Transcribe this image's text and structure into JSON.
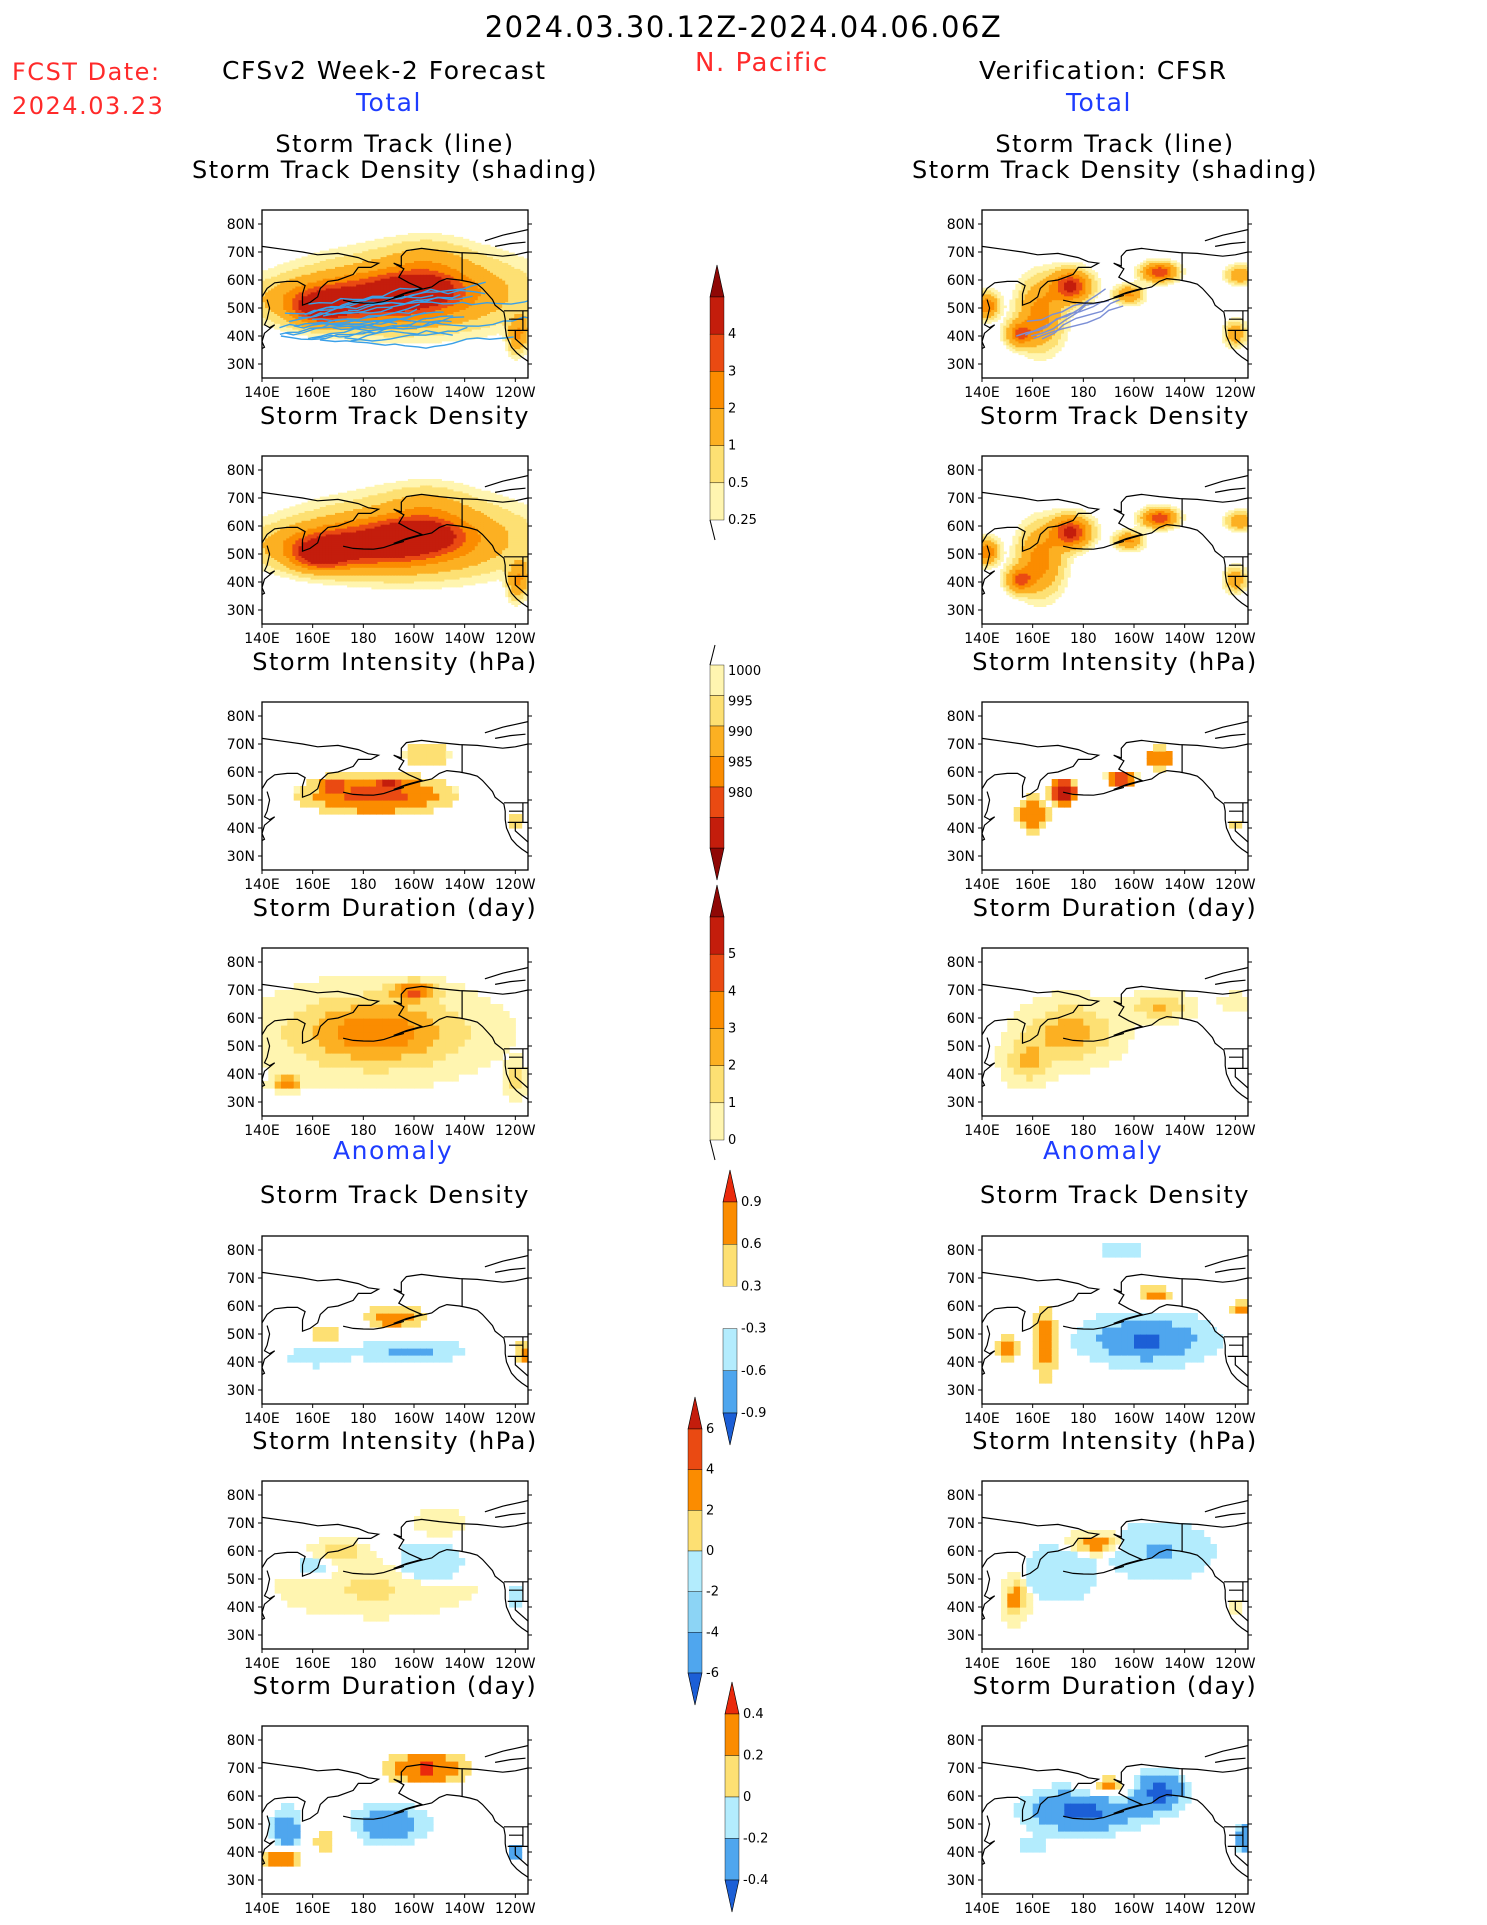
{
  "header": {
    "date_range": "2024.03.30.12Z-2024.04.06.06Z",
    "region": "N. Pacific",
    "fcst_label": "FCST Date:",
    "fcst_date": "2024.03.23",
    "left_title": "CFSv2 Week-2 Forecast",
    "right_title": "Verification: CFSR",
    "total_label": "Total",
    "anomaly_label": "Anomaly"
  },
  "colors": {
    "red_text": "#ff2a2a",
    "blue_text": "#1e3cff",
    "track_line": "#3aa0e8",
    "pos_ramp": [
      "#fff5b0",
      "#fde073",
      "#fcb022",
      "#fb8c00",
      "#ea4a12",
      "#c41d0c",
      "#8f0806"
    ],
    "neg_ramp": [
      "#b3ecfd",
      "#8cd4f5",
      "#4fa6ee",
      "#1c5fd6"
    ]
  },
  "axes": {
    "lat_ticks": [
      "80N",
      "70N",
      "60N",
      "50N",
      "40N",
      "30N"
    ],
    "lon_ticks": [
      "140E",
      "160E",
      "180",
      "160W",
      "140W",
      "120W"
    ]
  },
  "chart_data": [
    {
      "type": "heatmap",
      "panel": "forecast",
      "section": "Total",
      "title": "Storm Track (line)",
      "title2": "Storm Track Density (shading)",
      "units": "",
      "xlim": [
        "140E",
        "115W"
      ],
      "ylim": [
        "25N",
        "85N"
      ],
      "field": "forecast_density",
      "tracks": true
    },
    {
      "type": "heatmap",
      "panel": "verification",
      "section": "Total",
      "title": "Storm Track (line)",
      "title2": "Storm Track Density (shading)",
      "units": "",
      "xlim": [
        "140E",
        "115W"
      ],
      "ylim": [
        "25N",
        "85N"
      ],
      "field": "verif_density",
      "tracks": true
    },
    {
      "type": "heatmap",
      "panel": "forecast",
      "section": "Total",
      "title": "Storm Track Density",
      "units": "",
      "field": "forecast_density"
    },
    {
      "type": "heatmap",
      "panel": "verification",
      "section": "Total",
      "title": "Storm Track Density",
      "units": "",
      "field": "verif_density"
    },
    {
      "type": "heatmap",
      "panel": "forecast",
      "section": "Total",
      "title": "Storm Intensity (hPa)",
      "units": "hPa",
      "field": "forecast_intensity"
    },
    {
      "type": "heatmap",
      "panel": "verification",
      "section": "Total",
      "title": "Storm Intensity (hPa)",
      "units": "hPa",
      "field": "verif_intensity"
    },
    {
      "type": "heatmap",
      "panel": "forecast",
      "section": "Total",
      "title": "Storm Duration (day)",
      "units": "day",
      "field": "forecast_duration"
    },
    {
      "type": "heatmap",
      "panel": "verification",
      "section": "Total",
      "title": "Storm Duration (day)",
      "units": "day",
      "field": "verif_duration"
    },
    {
      "type": "heatmap",
      "panel": "forecast",
      "section": "Anomaly",
      "title": "Storm Track Density",
      "units": "",
      "field": "forecast_density_anom"
    },
    {
      "type": "heatmap",
      "panel": "verification",
      "section": "Anomaly",
      "title": "Storm Track Density",
      "units": "",
      "field": "verif_density_anom"
    },
    {
      "type": "heatmap",
      "panel": "forecast",
      "section": "Anomaly",
      "title": "Storm Intensity (hPa)",
      "units": "hPa",
      "field": "forecast_intensity_anom"
    },
    {
      "type": "heatmap",
      "panel": "verification",
      "section": "Anomaly",
      "title": "Storm Intensity (hPa)",
      "units": "hPa",
      "field": "verif_intensity_anom"
    },
    {
      "type": "heatmap",
      "panel": "forecast",
      "section": "Anomaly",
      "title": "Storm Duration (day)",
      "units": "day",
      "field": "forecast_duration_anom"
    },
    {
      "type": "heatmap",
      "panel": "verification",
      "section": "Anomaly",
      "title": "Storm Duration (day)",
      "units": "day",
      "field": "verif_duration_anom"
    }
  ],
  "colorbars": [
    {
      "name": "density",
      "labels": [
        "0.25",
        "0.5",
        "1",
        "2",
        "3",
        "4"
      ],
      "ramp": [
        "#fff5b0",
        "#fde073",
        "#fcb022",
        "#fb8c00",
        "#ea4a12",
        "#c41d0c",
        "#8f0806"
      ],
      "low_end": "open",
      "high_end": "arrow"
    },
    {
      "name": "intensity",
      "labels": [
        "1000",
        "995",
        "990",
        "985",
        "980"
      ],
      "ramp": [
        "#fff5b0",
        "#fde073",
        "#fcb022",
        "#fb8c00",
        "#ea4a12",
        "#c41d0c",
        "#8f0806"
      ],
      "low_end": "open",
      "high_end": "arrow",
      "reversed": true
    },
    {
      "name": "duration",
      "labels": [
        "0",
        "1",
        "2",
        "3",
        "4",
        "5"
      ],
      "ramp": [
        "#fff5b0",
        "#fde073",
        "#fcb022",
        "#fb8c00",
        "#ea4a12",
        "#c41d0c",
        "#8f0806"
      ],
      "low_end": "open",
      "high_end": "arrow"
    },
    {
      "name": "density_anom",
      "labels": [
        "0.9",
        "0.6",
        "0.3",
        "-0.3",
        "-0.6",
        "-0.9"
      ],
      "ramp": [
        "#1c5fd6",
        "#4fa6ee",
        "#b3ecfd",
        "#ffffff",
        "#fde073",
        "#fb8c00",
        "#ea2a0c"
      ]
    },
    {
      "name": "intensity_anom",
      "labels": [
        "6",
        "4",
        "2",
        "0",
        "-2",
        "-4",
        "-6"
      ],
      "ramp": [
        "#1c5fd6",
        "#4fa6ee",
        "#8cd4f5",
        "#b3ecfd",
        "#fde073",
        "#fb8c00",
        "#ea4a12",
        "#c41d0c"
      ]
    },
    {
      "name": "duration_anom",
      "labels": [
        "0.4",
        "0.2",
        "0",
        "-0.2",
        "-0.4"
      ],
      "ramp": [
        "#1c5fd6",
        "#4fa6ee",
        "#b3ecfd",
        "#fde073",
        "#fb8c00",
        "#ea2a0c"
      ]
    }
  ],
  "fields": {
    "forecast_density": [
      {
        "lon": 200,
        "lat": 56,
        "v": 2.5,
        "rx": 38,
        "ry": 12
      },
      {
        "lon": 178,
        "lat": 53,
        "v": 3.8,
        "rx": 30,
        "ry": 7
      },
      {
        "lon": 163,
        "lat": 50,
        "v": 3.6,
        "rx": 10,
        "ry": 5
      },
      {
        "lon": 202,
        "lat": 57,
        "v": 3.6,
        "rx": 14,
        "ry": 5
      },
      {
        "lon": 205,
        "lat": 66,
        "v": 0.8,
        "rx": 15,
        "ry": 8
      },
      {
        "lon": 240,
        "lat": 40,
        "v": 1.5,
        "rx": 3,
        "ry": 6
      },
      {
        "lon": 243,
        "lat": 42,
        "v": 1.2,
        "rx": 3,
        "ry": 6
      }
    ],
    "verif_density": [
      {
        "lon": 175,
        "lat": 58,
        "v": 4.5,
        "rx": 7,
        "ry": 5
      },
      {
        "lon": 163,
        "lat": 48,
        "v": 2.5,
        "rx": 8,
        "ry": 11
      },
      {
        "lon": 155,
        "lat": 41,
        "v": 3,
        "rx": 5,
        "ry": 4
      },
      {
        "lon": 142,
        "lat": 51,
        "v": 3,
        "rx": 4,
        "ry": 4
      },
      {
        "lon": 210,
        "lat": 63,
        "v": 4,
        "rx": 6,
        "ry": 3
      },
      {
        "lon": 198,
        "lat": 55,
        "v": 2.2,
        "rx": 5,
        "ry": 3
      },
      {
        "lon": 242,
        "lat": 62,
        "v": 2,
        "rx": 5,
        "ry": 3
      },
      {
        "lon": 240,
        "lat": 41,
        "v": 1.8,
        "rx": 4,
        "ry": 4
      }
    ],
    "forecast_intensity": [
      {
        "lon": 185,
        "lat": 52,
        "v": 988,
        "rx": 32,
        "ry": 8
      },
      {
        "lon": 168,
        "lat": 55,
        "v": 984,
        "rx": 6,
        "ry": 4
      },
      {
        "lon": 190,
        "lat": 56,
        "v": 984,
        "rx": 7,
        "ry": 3
      },
      {
        "lon": 205,
        "lat": 66,
        "v": 996,
        "rx": 12,
        "ry": 6
      },
      {
        "lon": 240,
        "lat": 42,
        "v": 998,
        "rx": 3,
        "ry": 6
      }
    ],
    "verif_intensity": [
      {
        "lon": 172,
        "lat": 53,
        "v": 981,
        "rx": 6,
        "ry": 5
      },
      {
        "lon": 195,
        "lat": 58,
        "v": 984,
        "rx": 6,
        "ry": 3
      },
      {
        "lon": 160,
        "lat": 45,
        "v": 990,
        "rx": 7,
        "ry": 7
      },
      {
        "lon": 210,
        "lat": 65,
        "v": 989,
        "rx": 6,
        "ry": 4
      },
      {
        "lon": 240,
        "lat": 41,
        "v": 999,
        "rx": 4,
        "ry": 4
      }
    ],
    "forecast_duration": [
      {
        "lon": 185,
        "lat": 55,
        "v": 3.8,
        "rx": 32,
        "ry": 12
      },
      {
        "lon": 150,
        "lat": 37,
        "v": 4.5,
        "rx": 5,
        "ry": 2
      },
      {
        "lon": 200,
        "lat": 70,
        "v": 4.2,
        "rx": 8,
        "ry": 3
      },
      {
        "lon": 240,
        "lat": 38,
        "v": 2,
        "rx": 3,
        "ry": 5
      }
    ],
    "verif_duration": [
      {
        "lon": 175,
        "lat": 55,
        "v": 2.8,
        "rx": 15,
        "ry": 9
      },
      {
        "lon": 158,
        "lat": 45,
        "v": 2.2,
        "rx": 8,
        "ry": 7
      },
      {
        "lon": 210,
        "lat": 64,
        "v": 2.2,
        "rx": 10,
        "ry": 4
      },
      {
        "lon": 240,
        "lat": 66,
        "v": 0.6,
        "rx": 6,
        "ry": 3
      }
    ],
    "forecast_density_anom": [
      {
        "lon": 190,
        "lat": 56,
        "v": 0.95,
        "rx": 15,
        "ry": 5
      },
      {
        "lon": 165,
        "lat": 50,
        "v": 0.8,
        "rx": 7,
        "ry": 3
      },
      {
        "lon": 200,
        "lat": 44,
        "v": -0.7,
        "rx": 22,
        "ry": 5
      },
      {
        "lon": 160,
        "lat": 42,
        "v": -0.45,
        "rx": 15,
        "ry": 5
      },
      {
        "lon": 172,
        "lat": 56,
        "v": -0.35,
        "rx": 20,
        "ry": 6
      },
      {
        "lon": 243,
        "lat": 43,
        "v": 0.9,
        "rx": 3,
        "ry": 4
      }
    ],
    "verif_density_anom": [
      {
        "lon": 205,
        "lat": 48,
        "v": -0.95,
        "rx": 28,
        "ry": 10
      },
      {
        "lon": 165,
        "lat": 47,
        "v": 0.95,
        "rx": 5,
        "ry": 14
      },
      {
        "lon": 150,
        "lat": 45,
        "v": 0.7,
        "rx": 5,
        "ry": 7
      },
      {
        "lon": 208,
        "lat": 64,
        "v": 0.95,
        "rx": 7,
        "ry": 3
      },
      {
        "lon": 195,
        "lat": 80,
        "v": -0.35,
        "rx": 30,
        "ry": 4
      },
      {
        "lon": 243,
        "lat": 59,
        "v": 0.85,
        "rx": 5,
        "ry": 3
      }
    ],
    "forecast_intensity_anom": [
      {
        "lon": 185,
        "lat": 47,
        "v": 2.5,
        "rx": 30,
        "ry": 8
      },
      {
        "lon": 170,
        "lat": 60,
        "v": 4.5,
        "rx": 8,
        "ry": 3
      },
      {
        "lon": 205,
        "lat": 54,
        "v": -2.5,
        "rx": 12,
        "ry": 7
      },
      {
        "lon": 162,
        "lat": 54,
        "v": -1.5,
        "rx": 10,
        "ry": 5
      },
      {
        "lon": 210,
        "lat": 70,
        "v": 1.5,
        "rx": 10,
        "ry": 4
      },
      {
        "lon": 240,
        "lat": 44,
        "v": -1,
        "rx": 4,
        "ry": 5
      }
    ],
    "verif_intensity_anom": [
      {
        "lon": 185,
        "lat": 63,
        "v": 6.5,
        "rx": 8,
        "ry": 3
      },
      {
        "lon": 153,
        "lat": 43,
        "v": 6,
        "rx": 4,
        "ry": 6
      },
      {
        "lon": 170,
        "lat": 52,
        "v": -3.5,
        "rx": 10,
        "ry": 7
      },
      {
        "lon": 210,
        "lat": 60,
        "v": -4.5,
        "rx": 14,
        "ry": 7
      },
      {
        "lon": 240,
        "lat": 40,
        "v": 1.5,
        "rx": 3,
        "ry": 3
      }
    ],
    "forecast_duration_anom": [
      {
        "lon": 205,
        "lat": 70,
        "v": 0.45,
        "rx": 15,
        "ry": 5
      },
      {
        "lon": 190,
        "lat": 50,
        "v": -0.3,
        "rx": 16,
        "ry": 8
      },
      {
        "lon": 150,
        "lat": 48,
        "v": -0.35,
        "rx": 6,
        "ry": 8
      },
      {
        "lon": 165,
        "lat": 45,
        "v": 0.15,
        "rx": 8,
        "ry": 8
      },
      {
        "lon": 148,
        "lat": 38,
        "v": 0.45,
        "rx": 7,
        "ry": 3
      },
      {
        "lon": 240,
        "lat": 40,
        "v": -0.4,
        "rx": 3,
        "ry": 3
      }
    ],
    "verif_duration_anom": [
      {
        "lon": 180,
        "lat": 55,
        "v": -0.45,
        "rx": 22,
        "ry": 8
      },
      {
        "lon": 210,
        "lat": 62,
        "v": -0.45,
        "rx": 10,
        "ry": 7
      },
      {
        "lon": 190,
        "lat": 63,
        "v": 0.35,
        "rx": 10,
        "ry": 4
      },
      {
        "lon": 244,
        "lat": 45,
        "v": -0.4,
        "rx": 4,
        "ry": 5
      },
      {
        "lon": 160,
        "lat": 42,
        "v": -0.15,
        "rx": 6,
        "ry": 4
      }
    ]
  }
}
